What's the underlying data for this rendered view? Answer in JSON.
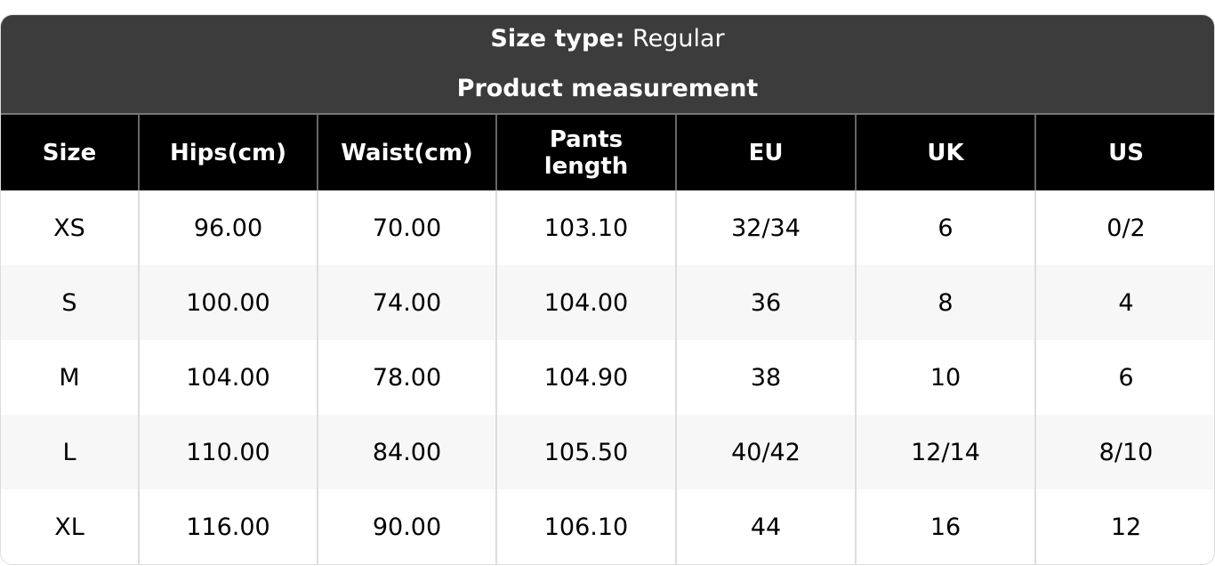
{
  "header": {
    "size_type_label": "Size type:",
    "size_type_value": "Regular",
    "subtitle": "Product measurement"
  },
  "columns": [
    "Size",
    "Hips(cm)",
    "Waist(cm)",
    "Pants length",
    "EU",
    "UK",
    "US"
  ],
  "rows": [
    [
      "XS",
      "96.00",
      "70.00",
      "103.10",
      "32/34",
      "6",
      "0/2"
    ],
    [
      "S",
      "100.00",
      "74.00",
      "104.00",
      "36",
      "8",
      "4"
    ],
    [
      "M",
      "104.00",
      "78.00",
      "104.90",
      "38",
      "10",
      "6"
    ],
    [
      "L",
      "110.00",
      "84.00",
      "105.50",
      "40/42",
      "12/14",
      "8/10"
    ],
    [
      "XL",
      "116.00",
      "90.00",
      "106.10",
      "44",
      "16",
      "12"
    ]
  ]
}
